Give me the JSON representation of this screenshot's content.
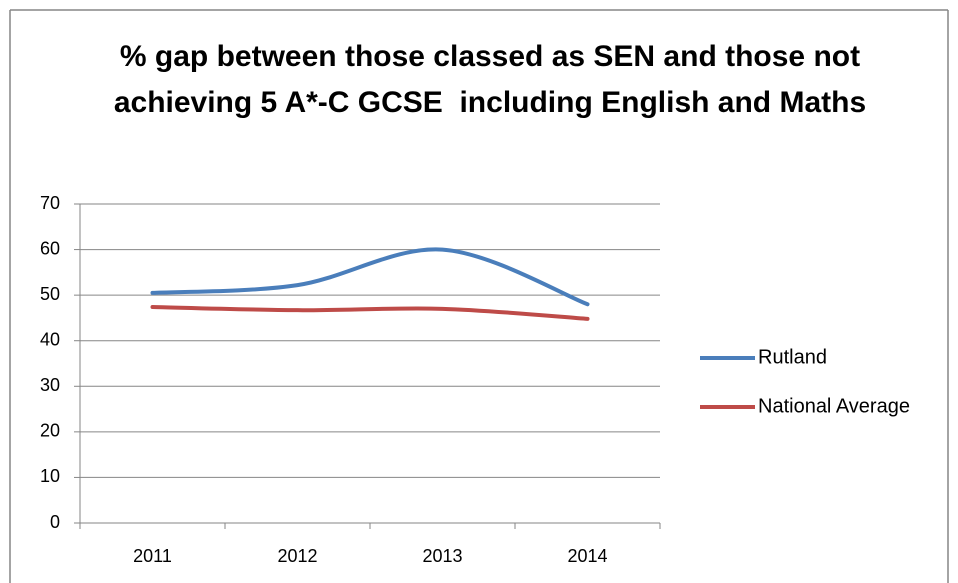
{
  "chart_data": {
    "type": "line",
    "title": "% gap between those classed as SEN and those not achieving 5 A*-C GCSE  including English and Maths",
    "categories": [
      "2011",
      "2012",
      "2013",
      "2014"
    ],
    "series": [
      {
        "name": "Rutland",
        "color": "#4a7ebb",
        "values": [
          50.5,
          52.2,
          60,
          48
        ]
      },
      {
        "name": "National Average",
        "color": "#be4b48",
        "values": [
          47.4,
          46.7,
          47,
          44.8
        ]
      }
    ],
    "ylim": [
      0,
      70
    ],
    "yticks": [
      0,
      10,
      20,
      30,
      40,
      50,
      60,
      70
    ],
    "grid": true,
    "legend": "right"
  }
}
